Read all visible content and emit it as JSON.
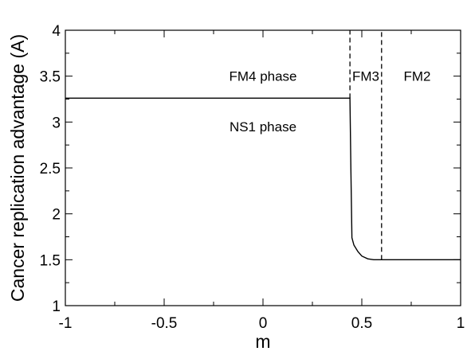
{
  "chart_data": {
    "type": "line",
    "title": "",
    "xlabel": "m",
    "ylabel": "Cancer replication advantage (A)",
    "xlim": [
      -1,
      1
    ],
    "ylim": [
      1,
      4
    ],
    "grid": false,
    "xticks": [
      -1,
      -0.5,
      0,
      0.5,
      1
    ],
    "xtick_labels": [
      "-1",
      "-0.5",
      "0",
      "0.5",
      "1"
    ],
    "yticks": [
      1,
      1.5,
      2,
      2.5,
      3,
      3.5,
      4
    ],
    "ytick_labels": [
      "1",
      "1.5",
      "2",
      "2.5",
      "3",
      "3.5",
      "4"
    ],
    "series": [
      {
        "style": "solid",
        "color": "#000000",
        "x": [
          -1,
          0.44,
          0.445,
          0.45,
          0.46,
          0.48,
          0.5,
          0.53,
          0.56,
          0.6,
          1.0
        ],
        "y": [
          3.26,
          3.26,
          2.45,
          1.74,
          1.66,
          1.59,
          1.54,
          1.51,
          1.5,
          1.5,
          1.5
        ]
      }
    ],
    "vertical_lines": [
      {
        "x": 0.44,
        "y_from": 3.26,
        "y_to": 4,
        "style": "dashed"
      },
      {
        "x": 0.6,
        "y_from": 1.5,
        "y_to": 4,
        "style": "dashed"
      }
    ],
    "annotations": [
      {
        "text": "FM4 phase",
        "x": 0.0,
        "y": 3.5
      },
      {
        "text": "NS1 phase",
        "x": 0.0,
        "y": 2.95
      },
      {
        "text": "FM3",
        "x": 0.52,
        "y": 3.5
      },
      {
        "text": "FM2",
        "x": 0.78,
        "y": 3.5
      }
    ]
  }
}
